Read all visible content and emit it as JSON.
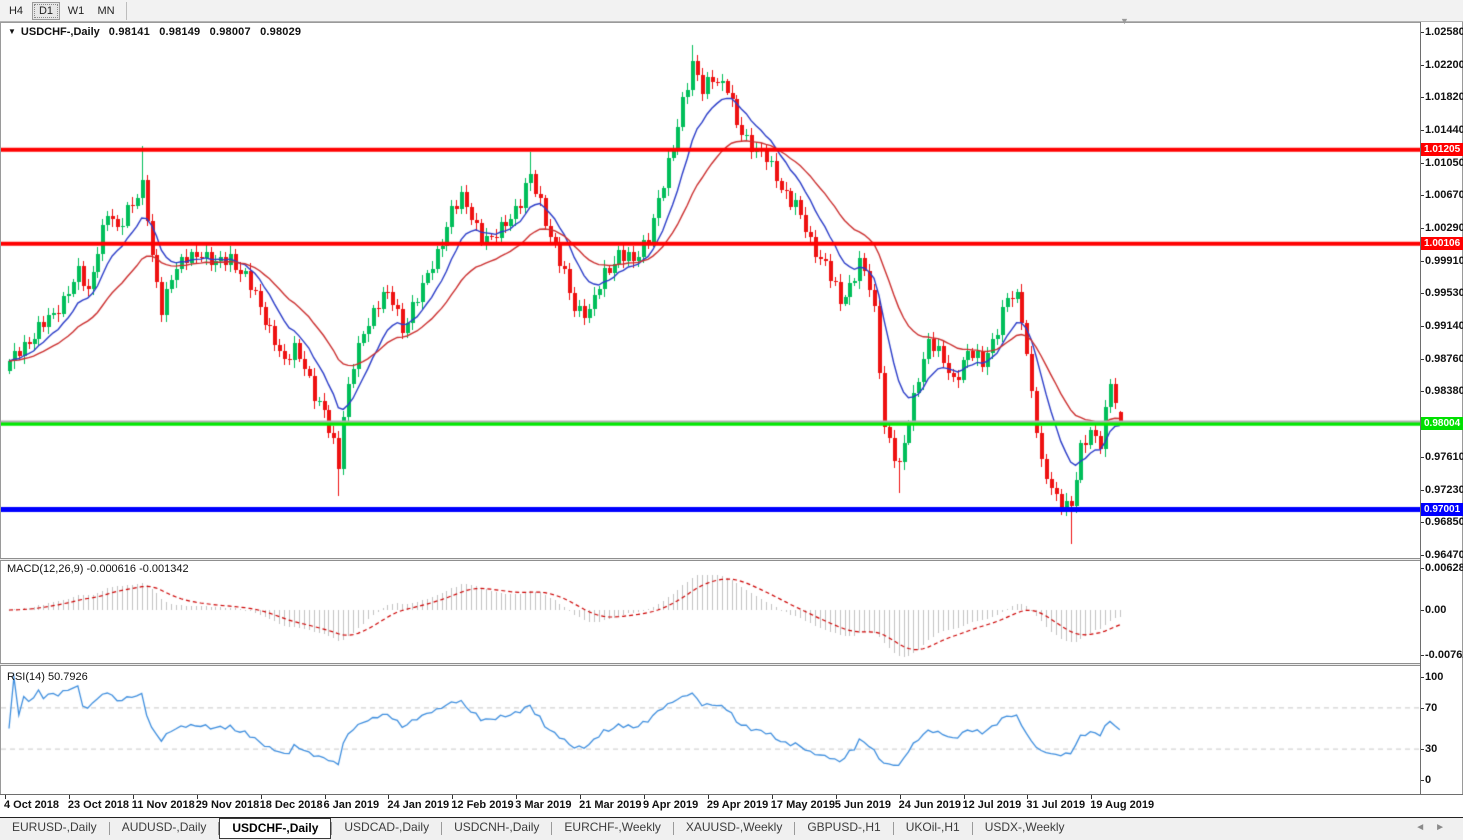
{
  "toolbar": {
    "timeframes": [
      {
        "label": "H4",
        "active": false
      },
      {
        "label": "D1",
        "active": true
      },
      {
        "label": "W1",
        "active": false
      },
      {
        "label": "MN",
        "active": false
      }
    ]
  },
  "chart_header": {
    "symbol": "USDCHF-,Daily",
    "open": "0.98141",
    "high": "0.98149",
    "low": "0.98007",
    "close": "0.98029"
  },
  "price_scale": {
    "ticks": [
      "1.02580",
      "1.02200",
      "1.01820",
      "1.01440",
      "1.01050",
      "1.00670",
      "1.00290",
      "0.99910",
      "0.99530",
      "0.99140",
      "0.98760",
      "0.98380",
      "0.97610",
      "0.97230",
      "0.96850",
      "0.96470"
    ],
    "tags": [
      {
        "label": "1.01205",
        "price": 1.01205,
        "bg": "#FF0000",
        "fg": "#FFFFFF"
      },
      {
        "label": "1.00106",
        "price": 1.00106,
        "bg": "#FF0000",
        "fg": "#FFFFFF"
      },
      {
        "label": "0.98004",
        "price": 0.98004,
        "bg": "#00E000",
        "fg": "#FFFFFF"
      },
      {
        "label": "0.97001",
        "price": 0.97001,
        "bg": "#0000FF",
        "fg": "#FFFFFF"
      }
    ]
  },
  "macd_panel": {
    "label": "MACD(12,26,9)",
    "value_main": "-0.000616",
    "value_signal": "-0.001342",
    "scale": [
      "0.006286",
      "0.00",
      "-0.00762"
    ]
  },
  "rsi_panel": {
    "label": "RSI(14)",
    "value": "50.7926",
    "scale": [
      "100",
      "70",
      "30",
      "0"
    ],
    "levels": [
      70,
      30
    ]
  },
  "time_axis": {
    "labels": [
      "4 Oct 2018",
      "23 Oct 2018",
      "11 Nov 2018",
      "29 Nov 2018",
      "18 Dec 2018",
      "6 Jan 2019",
      "24 Jan 2019",
      "12 Feb 2019",
      "3 Mar 2019",
      "21 Mar 2019",
      "9 Apr 2019",
      "29 Apr 2019",
      "17 May 2019",
      "5 Jun 2019",
      "24 Jun 2019",
      "12 Jul 2019",
      "31 Jul 2019",
      "19 Aug 2019"
    ]
  },
  "tabs": {
    "items": [
      {
        "label": "EURUSD-,Daily",
        "active": false
      },
      {
        "label": "AUDUSD-,Daily",
        "active": false
      },
      {
        "label": "USDCHF-,Daily",
        "active": true
      },
      {
        "label": "USDCAD-,Daily",
        "active": false
      },
      {
        "label": "USDCNH-,Daily",
        "active": false
      },
      {
        "label": "EURCHF-,Weekly",
        "active": false
      },
      {
        "label": "XAUUSD-,Weekly",
        "active": false
      },
      {
        "label": "GBPUSD-,H1",
        "active": false
      },
      {
        "label": "UKOil-,H1",
        "active": false
      },
      {
        "label": "USDX-,Weekly",
        "active": false
      }
    ],
    "scroll_left": "◄",
    "scroll_right": "►"
  },
  "chart_data": {
    "type": "candlestick",
    "symbol": "USDCHF",
    "timeframe": "Daily",
    "title": "USDCHF-,Daily",
    "x_range": [
      "4 Oct 2018",
      "23 Aug 2019"
    ],
    "y_axis_range": [
      0.9634,
      1.0247
    ],
    "last_ohlc": {
      "open": 0.98141,
      "high": 0.98149,
      "low": 0.98007,
      "close": 0.98029
    },
    "candle_count": 227,
    "close_keyframes": [
      [
        0,
        0.987
      ],
      [
        3,
        0.9892
      ],
      [
        6,
        0.9912
      ],
      [
        9,
        0.9926
      ],
      [
        12,
        0.9958
      ],
      [
        14,
        0.9976
      ],
      [
        16,
        0.9952
      ],
      [
        18,
        1.0008
      ],
      [
        20,
        1.0048
      ],
      [
        22,
        1.0022
      ],
      [
        24,
        1.0052
      ],
      [
        26,
        1.007
      ],
      [
        27,
        1.0078
      ],
      [
        28,
        1.004
      ],
      [
        29,
        0.999
      ],
      [
        31,
        0.9935
      ],
      [
        33,
        0.9975
      ],
      [
        36,
        0.9992
      ],
      [
        39,
        1.0002
      ],
      [
        42,
        0.9985
      ],
      [
        45,
        0.9995
      ],
      [
        48,
        0.9972
      ],
      [
        51,
        0.9935
      ],
      [
        54,
        0.99
      ],
      [
        56,
        0.9868
      ],
      [
        58,
        0.9888
      ],
      [
        60,
        0.9872
      ],
      [
        62,
        0.9832
      ],
      [
        64,
        0.981
      ],
      [
        66,
        0.978
      ],
      [
        67,
        0.9755
      ],
      [
        68,
        0.9812
      ],
      [
        70,
        0.9868
      ],
      [
        73,
        0.9922
      ],
      [
        76,
        0.9952
      ],
      [
        78,
        0.9942
      ],
      [
        80,
        0.9912
      ],
      [
        82,
        0.9938
      ],
      [
        84,
        0.9958
      ],
      [
        87,
        1.0
      ],
      [
        90,
        1.0048
      ],
      [
        92,
        1.0062
      ],
      [
        94,
        1.0045
      ],
      [
        96,
        1.002
      ],
      [
        98,
        1.0012
      ],
      [
        101,
        1.0038
      ],
      [
        104,
        1.0058
      ],
      [
        106,
        1.0088
      ],
      [
        108,
        1.006
      ],
      [
        110,
        1.002
      ],
      [
        112,
        0.9988
      ],
      [
        115,
        0.9938
      ],
      [
        118,
        0.993
      ],
      [
        121,
        0.9975
      ],
      [
        124,
        1.0
      ],
      [
        127,
        0.9988
      ],
      [
        130,
        1.0022
      ],
      [
        133,
        1.0078
      ],
      [
        135,
        1.0125
      ],
      [
        137,
        1.018
      ],
      [
        139,
        1.0218
      ],
      [
        141,
        1.0188
      ],
      [
        143,
        1.0208
      ],
      [
        146,
        1.0192
      ],
      [
        148,
        1.0148
      ],
      [
        151,
        1.0128
      ],
      [
        154,
        1.0108
      ],
      [
        157,
        1.0078
      ],
      [
        160,
        1.0055
      ],
      [
        163,
        1.0012
      ],
      [
        166,
        0.9988
      ],
      [
        169,
        0.994
      ],
      [
        171,
        0.9962
      ],
      [
        173,
        0.9992
      ],
      [
        175,
        0.9958
      ],
      [
        176,
        0.9928
      ],
      [
        178,
        0.98
      ],
      [
        181,
        0.9748
      ],
      [
        183,
        0.9802
      ],
      [
        185,
        0.9858
      ],
      [
        187,
        0.9898
      ],
      [
        190,
        0.9872
      ],
      [
        192,
        0.9852
      ],
      [
        195,
        0.9882
      ],
      [
        198,
        0.9872
      ],
      [
        201,
        0.9912
      ],
      [
        203,
        0.9945
      ],
      [
        205,
        0.9948
      ],
      [
        206,
        0.9928
      ],
      [
        208,
        0.9838
      ],
      [
        210,
        0.9748
      ],
      [
        213,
        0.9716
      ],
      [
        216,
        0.9702
      ],
      [
        218,
        0.9768
      ],
      [
        220,
        0.9795
      ],
      [
        222,
        0.9778
      ],
      [
        224,
        0.9845
      ],
      [
        226,
        0.98029
      ]
    ],
    "spike_wicks": [
      {
        "index": 27,
        "high": 1.0125
      },
      {
        "index": 67,
        "low": 0.9716
      },
      {
        "index": 106,
        "high": 1.0118
      },
      {
        "index": 139,
        "high": 1.0243
      },
      {
        "index": 181,
        "low": 0.972
      },
      {
        "index": 216,
        "low": 0.9659
      }
    ],
    "horizontal_lines": [
      {
        "price": 1.01205,
        "color": "#FF0000",
        "width": 4
      },
      {
        "price": 1.00106,
        "color": "#FF0000",
        "width": 4
      },
      {
        "price": 0.98004,
        "color": "#00E800",
        "width": 4
      },
      {
        "price": 0.97001,
        "color": "#0000FF",
        "width": 5
      }
    ],
    "current_price_line": {
      "price": 0.98029,
      "color": "#b0b0b0"
    },
    "moving_averages": [
      {
        "type": "EMA",
        "period": 10,
        "color": "#2A3CC8"
      },
      {
        "type": "EMA",
        "period": 25,
        "color": "#CB2F2F"
      }
    ],
    "indicators": [
      {
        "name": "MACD",
        "params": [
          12,
          26,
          9
        ],
        "scale_max": 0.006286,
        "scale_min": -0.00762
      },
      {
        "name": "RSI",
        "params": [
          14
        ],
        "levels": [
          70,
          30
        ]
      }
    ],
    "colors": {
      "bull": "#00BE5A",
      "bear": "#EE1111",
      "macd_histogram": "#c2c2c2",
      "macd_signal": "#CC0000",
      "rsi_line": "#3E8EDE",
      "level_dash": "#c8c8c8"
    }
  }
}
